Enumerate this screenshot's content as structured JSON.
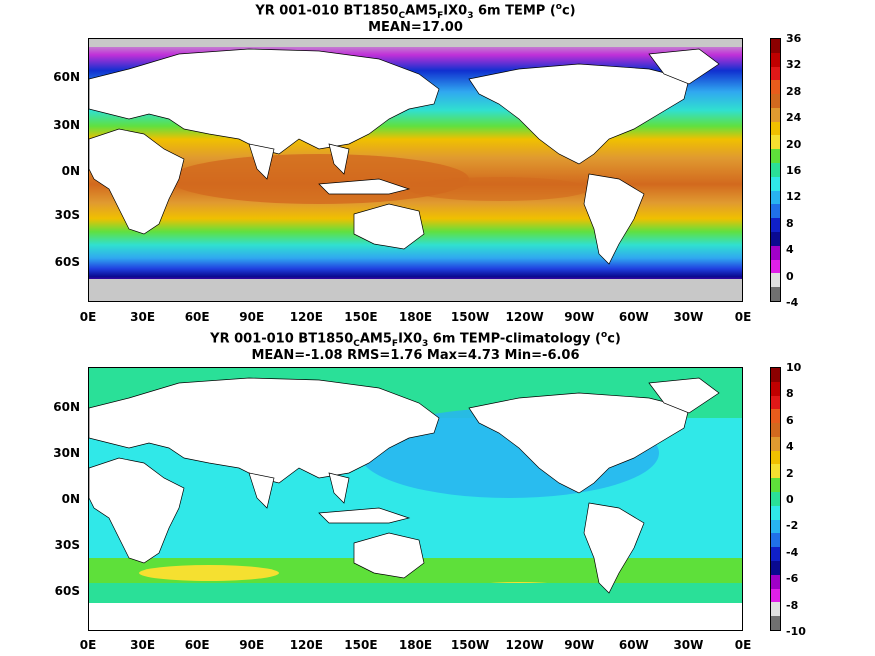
{
  "panels": [
    {
      "title_text": "YR 001-010 BT1850",
      "title_sub1": "C",
      "title_mid": "AM5",
      "title_sub2": "F",
      "title_mid2": "IX0",
      "title_sub3": "3",
      "title_tail": " 6m TEMP (",
      "title_sup": "o",
      "title_end": "c)",
      "stats": "MEAN=17.00",
      "colorbar_labels": [
        "36",
        "32",
        "28",
        "24",
        "20",
        "16",
        "12",
        "8",
        "4",
        "0",
        "-4"
      ],
      "colorbar_colors": [
        "#8b0000",
        "#c00000",
        "#e01818",
        "#e85c1c",
        "#d2691e",
        "#e09a30",
        "#f0c000",
        "#f5e030",
        "#5ee03a",
        "#2ae098",
        "#30e8e8",
        "#28b4f0",
        "#2070e8",
        "#1020c8",
        "#0a0a90",
        "#a000c8",
        "#e020e8",
        "#e0e0e0",
        "#707070"
      ]
    },
    {
      "title_text": "YR 001-010 BT1850",
      "title_sub1": "C",
      "title_mid": "AM5",
      "title_sub2": "F",
      "title_mid2": "IX0",
      "title_sub3": "3",
      "title_tail": " 6m TEMP-climatology (",
      "title_sup": "o",
      "title_end": "c)",
      "stats": "MEAN=-1.08   RMS=1.76   Max=4.73   Min=-6.06",
      "colorbar_labels": [
        "10",
        "8",
        "6",
        "4",
        "2",
        "0",
        "-2",
        "-4",
        "-6",
        "-8",
        "-10"
      ],
      "colorbar_colors": [
        "#8b0000",
        "#c00000",
        "#e01818",
        "#e85c1c",
        "#d2691e",
        "#e09a30",
        "#f0c000",
        "#f5e030",
        "#5ee03a",
        "#2ae098",
        "#30e8e8",
        "#28b4f0",
        "#2070e8",
        "#1020c8",
        "#0a0a90",
        "#a000c8",
        "#e020e8",
        "#e0e0e0",
        "#707070"
      ]
    }
  ],
  "lat_labels": [
    "60N",
    "30N",
    "0N",
    "30S",
    "60S"
  ],
  "lon_labels": [
    "0E",
    "30E",
    "60E",
    "90E",
    "120E",
    "150E",
    "180E",
    "150W",
    "120W",
    "90W",
    "60W",
    "30W",
    "0E"
  ]
}
